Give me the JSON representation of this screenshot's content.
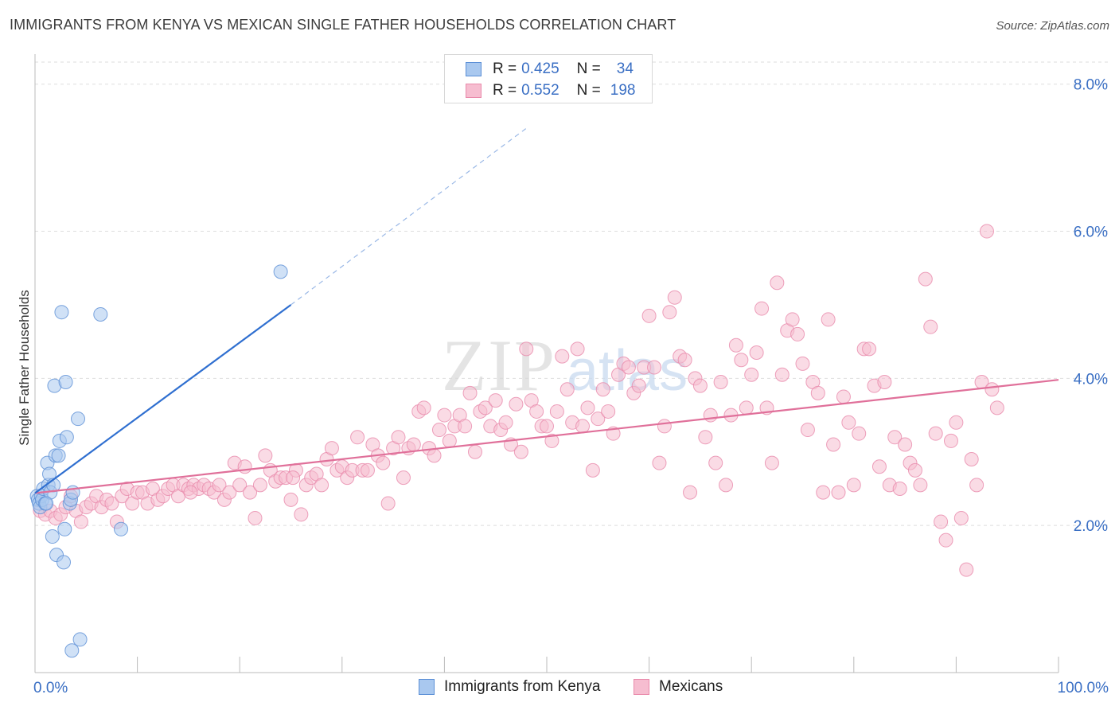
{
  "header": {
    "title": "IMMIGRANTS FROM KENYA VS MEXICAN SINGLE FATHER HOUSEHOLDS CORRELATION CHART",
    "source": "Source: ZipAtlas.com"
  },
  "colors": {
    "kenya_fill": "#a9c8ef",
    "kenya_stroke": "#5b8fd6",
    "kenya_line": "#2f6fd0",
    "mex_fill": "#f6bdd0",
    "mex_stroke": "#e98aab",
    "mex_line": "#e0709a",
    "axis_label": "#3a6fc4",
    "grid": "#dedede"
  },
  "stats_legend": {
    "rows": [
      {
        "r_label": "R =",
        "r_value": "0.425",
        "n_label": "N =",
        "n_value": "34"
      },
      {
        "r_label": "R =",
        "r_value": "0.552",
        "n_label": "N =",
        "n_value": "198"
      }
    ]
  },
  "watermark": {
    "zip": "ZIP",
    "atlas": "atlas"
  },
  "chart_data": {
    "type": "scatter",
    "title": "IMMIGRANTS FROM KENYA VS MEXICAN SINGLE FATHER HOUSEHOLDS CORRELATION CHART",
    "xlabel": "",
    "ylabel": "Single Father Households",
    "xlim": [
      0,
      100
    ],
    "ylim": [
      0,
      8.3
    ],
    "x_tick_labels": [
      "0.0%",
      "100.0%"
    ],
    "y_ticks": [
      2,
      4,
      6,
      8
    ],
    "y_tick_labels": [
      "2.0%",
      "4.0%",
      "6.0%",
      "8.0%"
    ],
    "legend": [
      "Immigrants from Kenya",
      "Mexicans"
    ],
    "series": [
      {
        "name": "Immigrants from Kenya",
        "points": [
          [
            0.2,
            2.4
          ],
          [
            0.3,
            2.35
          ],
          [
            0.4,
            2.3
          ],
          [
            0.5,
            2.25
          ],
          [
            0.6,
            2.4
          ],
          [
            0.7,
            2.35
          ],
          [
            0.8,
            2.5
          ],
          [
            1.0,
            2.3
          ],
          [
            1.2,
            2.85
          ],
          [
            1.3,
            2.55
          ],
          [
            1.4,
            2.7
          ],
          [
            1.5,
            2.45
          ],
          [
            1.7,
            1.85
          ],
          [
            1.8,
            2.55
          ],
          [
            1.9,
            3.9
          ],
          [
            2.0,
            2.95
          ],
          [
            2.1,
            1.6
          ],
          [
            2.3,
            2.95
          ],
          [
            2.4,
            3.15
          ],
          [
            2.6,
            4.9
          ],
          [
            2.8,
            1.5
          ],
          [
            2.9,
            1.95
          ],
          [
            3.0,
            3.95
          ],
          [
            3.1,
            3.2
          ],
          [
            3.4,
            2.3
          ],
          [
            3.5,
            2.35
          ],
          [
            3.6,
            0.3
          ],
          [
            3.7,
            2.45
          ],
          [
            4.2,
            3.45
          ],
          [
            4.4,
            0.45
          ],
          [
            6.4,
            4.87
          ],
          [
            8.4,
            1.95
          ],
          [
            24.0,
            5.45
          ],
          [
            1.1,
            2.3
          ]
        ],
        "trend": {
          "x": [
            0,
            25
          ],
          "y": [
            2.44,
            5.0
          ],
          "dashed_to": {
            "x": 48,
            "y": 7.4
          }
        }
      },
      {
        "name": "Mexicans",
        "points": [
          [
            0.5,
            2.2
          ],
          [
            1,
            2.15
          ],
          [
            1.5,
            2.2
          ],
          [
            2,
            2.1
          ],
          [
            2.5,
            2.15
          ],
          [
            3,
            2.25
          ],
          [
            3.5,
            2.4
          ],
          [
            4,
            2.2
          ],
          [
            4.5,
            2.05
          ],
          [
            5,
            2.25
          ],
          [
            5.5,
            2.3
          ],
          [
            6,
            2.4
          ],
          [
            6.5,
            2.25
          ],
          [
            7,
            2.35
          ],
          [
            7.5,
            2.3
          ],
          [
            8,
            2.05
          ],
          [
            8.5,
            2.4
          ],
          [
            9,
            2.5
          ],
          [
            9.5,
            2.3
          ],
          [
            10,
            2.45
          ],
          [
            10.5,
            2.45
          ],
          [
            11,
            2.3
          ],
          [
            11.5,
            2.5
          ],
          [
            12,
            2.35
          ],
          [
            12.5,
            2.4
          ],
          [
            13,
            2.5
          ],
          [
            13.5,
            2.55
          ],
          [
            14,
            2.4
          ],
          [
            14.5,
            2.55
          ],
          [
            15,
            2.5
          ],
          [
            15.5,
            2.55
          ],
          [
            16,
            2.5
          ],
          [
            16.5,
            2.55
          ],
          [
            17,
            2.5
          ],
          [
            17.5,
            2.45
          ],
          [
            18,
            2.55
          ],
          [
            18.5,
            2.35
          ],
          [
            19,
            2.45
          ],
          [
            19.5,
            2.85
          ],
          [
            20,
            2.55
          ],
          [
            20.5,
            2.8
          ],
          [
            21,
            2.45
          ],
          [
            21.5,
            2.1
          ],
          [
            22,
            2.55
          ],
          [
            22.5,
            2.95
          ],
          [
            23,
            2.75
          ],
          [
            23.5,
            2.6
          ],
          [
            24,
            2.65
          ],
          [
            24.5,
            2.65
          ],
          [
            25,
            2.35
          ],
          [
            25.5,
            2.75
          ],
          [
            26,
            2.15
          ],
          [
            26.5,
            2.55
          ],
          [
            27,
            2.65
          ],
          [
            27.5,
            2.7
          ],
          [
            28,
            2.55
          ],
          [
            28.5,
            2.9
          ],
          [
            29,
            3.05
          ],
          [
            29.5,
            2.75
          ],
          [
            30,
            2.8
          ],
          [
            30.5,
            2.65
          ],
          [
            31,
            2.75
          ],
          [
            31.5,
            3.2
          ],
          [
            32,
            2.75
          ],
          [
            32.5,
            2.75
          ],
          [
            33,
            3.1
          ],
          [
            33.5,
            2.95
          ],
          [
            34,
            2.85
          ],
          [
            34.5,
            2.3
          ],
          [
            35,
            3.05
          ],
          [
            35.5,
            3.2
          ],
          [
            36,
            2.65
          ],
          [
            36.5,
            3.05
          ],
          [
            37,
            3.1
          ],
          [
            37.5,
            3.55
          ],
          [
            38,
            3.6
          ],
          [
            38.5,
            3.05
          ],
          [
            39,
            2.95
          ],
          [
            39.5,
            3.3
          ],
          [
            40,
            3.5
          ],
          [
            40.5,
            3.15
          ],
          [
            41,
            3.35
          ],
          [
            41.5,
            3.5
          ],
          [
            42,
            3.35
          ],
          [
            42.5,
            3.8
          ],
          [
            43,
            3.0
          ],
          [
            43.5,
            3.55
          ],
          [
            44,
            3.6
          ],
          [
            44.5,
            3.35
          ],
          [
            45,
            3.7
          ],
          [
            45.5,
            3.3
          ],
          [
            46,
            3.4
          ],
          [
            46.5,
            3.1
          ],
          [
            47,
            3.65
          ],
          [
            47.5,
            3.0
          ],
          [
            48,
            4.4
          ],
          [
            48.5,
            3.7
          ],
          [
            49,
            3.55
          ],
          [
            49.5,
            3.35
          ],
          [
            50,
            3.35
          ],
          [
            50.5,
            3.15
          ],
          [
            51,
            3.55
          ],
          [
            51.5,
            4.3
          ],
          [
            52,
            3.85
          ],
          [
            52.5,
            3.4
          ],
          [
            53,
            4.4
          ],
          [
            53.5,
            3.35
          ],
          [
            54,
            3.6
          ],
          [
            54.5,
            2.75
          ],
          [
            55,
            3.45
          ],
          [
            55.5,
            3.85
          ],
          [
            56,
            3.55
          ],
          [
            56.5,
            3.25
          ],
          [
            57,
            4.05
          ],
          [
            57.5,
            4.2
          ],
          [
            58,
            4.15
          ],
          [
            58.5,
            3.8
          ],
          [
            59,
            3.9
          ],
          [
            59.5,
            4.15
          ],
          [
            60,
            4.85
          ],
          [
            60.5,
            4.15
          ],
          [
            61,
            2.85
          ],
          [
            61.5,
            3.35
          ],
          [
            62,
            4.9
          ],
          [
            62.5,
            5.1
          ],
          [
            63,
            4.3
          ],
          [
            63.5,
            4.25
          ],
          [
            64,
            2.45
          ],
          [
            64.5,
            4.0
          ],
          [
            65,
            3.9
          ],
          [
            65.5,
            3.2
          ],
          [
            66,
            3.5
          ],
          [
            66.5,
            2.85
          ],
          [
            67,
            3.95
          ],
          [
            67.5,
            2.55
          ],
          [
            68,
            3.5
          ],
          [
            68.5,
            4.45
          ],
          [
            69,
            4.25
          ],
          [
            69.5,
            3.6
          ],
          [
            70,
            4.05
          ],
          [
            70.5,
            4.35
          ],
          [
            71,
            4.95
          ],
          [
            71.5,
            3.6
          ],
          [
            72,
            2.85
          ],
          [
            72.5,
            5.3
          ],
          [
            73,
            4.05
          ],
          [
            73.5,
            4.65
          ],
          [
            74,
            4.8
          ],
          [
            74.5,
            4.6
          ],
          [
            75,
            4.2
          ],
          [
            75.5,
            3.3
          ],
          [
            76,
            3.95
          ],
          [
            76.5,
            3.8
          ],
          [
            77,
            2.45
          ],
          [
            77.5,
            4.8
          ],
          [
            78,
            3.1
          ],
          [
            78.5,
            2.45
          ],
          [
            79,
            3.75
          ],
          [
            79.5,
            3.4
          ],
          [
            80,
            2.55
          ],
          [
            80.5,
            3.25
          ],
          [
            81,
            4.4
          ],
          [
            81.5,
            4.4
          ],
          [
            82,
            3.9
          ],
          [
            82.5,
            2.8
          ],
          [
            83,
            3.95
          ],
          [
            83.5,
            2.55
          ],
          [
            84,
            3.2
          ],
          [
            84.5,
            2.5
          ],
          [
            85,
            3.1
          ],
          [
            85.5,
            2.85
          ],
          [
            86,
            2.75
          ],
          [
            86.5,
            2.55
          ],
          [
            87,
            5.35
          ],
          [
            87.5,
            4.7
          ],
          [
            88,
            3.25
          ],
          [
            88.5,
            2.05
          ],
          [
            89,
            1.8
          ],
          [
            89.5,
            3.15
          ],
          [
            90,
            3.4
          ],
          [
            90.5,
            2.1
          ],
          [
            91,
            1.4
          ],
          [
            91.5,
            2.9
          ],
          [
            92,
            2.55
          ],
          [
            92.5,
            3.95
          ],
          [
            93,
            6.0
          ],
          [
            93.5,
            3.85
          ],
          [
            94,
            3.6
          ],
          [
            25.2,
            2.65
          ],
          [
            15.2,
            2.45
          ]
        ],
        "trend": {
          "x": [
            0,
            100
          ],
          "y": [
            2.44,
            3.98
          ]
        }
      }
    ]
  }
}
